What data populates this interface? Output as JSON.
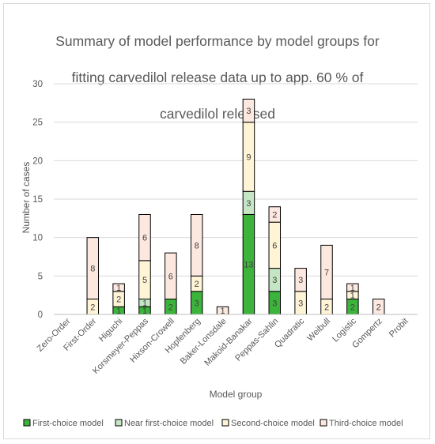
{
  "chart_data": {
    "type": "bar",
    "stacked": true,
    "title": "Summary of model performance by model groups for fitting carvedilol release data up to app. 60 % of carvedilol released",
    "title_lines": [
      "Summary of model performance by model groups for",
      "fitting carvedilol release data up to app. 60 % of",
      "carvedilol released"
    ],
    "xlabel": "Model group",
    "ylabel": "Number of cases",
    "ylim": [
      0,
      30
    ],
    "yticks": [
      0,
      5,
      10,
      15,
      20,
      25,
      30
    ],
    "grid": "horizontal",
    "legend_position": "bottom",
    "categories": [
      "Zero-Order",
      "First-Order",
      "Higuchi",
      "Korsmeyer-Peppas",
      "Hixson-Crowell",
      "Hopfenberg",
      "Baker-Lonsdale",
      "Makoid-Banakar",
      "Peppas-Sahlin",
      "Quadratic",
      "Weibull",
      "Logistic",
      "Gompertz",
      "Probit"
    ],
    "series": [
      {
        "name": "First-choice model",
        "color": "#3cb43c",
        "values": [
          0,
          0,
          1,
          1,
          2,
          3,
          0,
          13,
          3,
          0,
          0,
          2,
          0,
          0
        ]
      },
      {
        "name": "Near first-choice model",
        "color": "#c5e6c5",
        "values": [
          0,
          0,
          0,
          1,
          0,
          0,
          0,
          3,
          3,
          0,
          0,
          0,
          0,
          0
        ]
      },
      {
        "name": "Second-choice model",
        "color": "#fff5d6",
        "values": [
          0,
          2,
          2,
          5,
          0,
          2,
          0,
          9,
          6,
          3,
          2,
          1,
          0,
          0
        ]
      },
      {
        "name": "Third-choice model",
        "color": "#fde8e0",
        "values": [
          0,
          8,
          1,
          6,
          6,
          8,
          1,
          3,
          2,
          3,
          7,
          1,
          2,
          0
        ]
      }
    ]
  }
}
